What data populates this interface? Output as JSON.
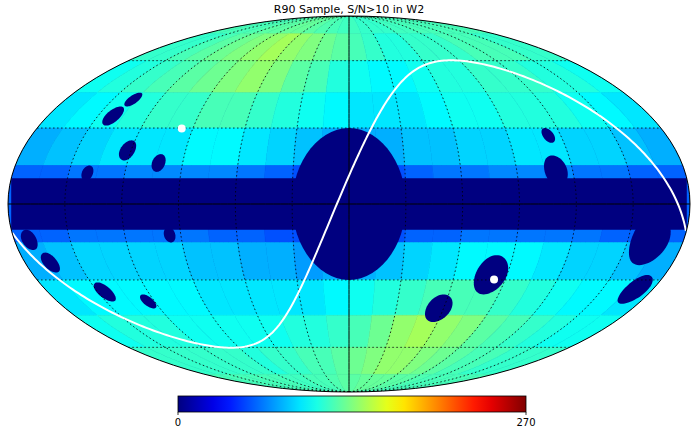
{
  "chart_data": {
    "type": "heatmap",
    "title": "R90 Sample, S/N>10 in W2",
    "lon_edges": [
      180,
      165,
      150,
      135,
      120,
      105,
      90,
      75,
      60,
      45,
      30,
      15,
      0,
      -15,
      -30,
      -45,
      -60,
      -75,
      -90,
      -105,
      -120,
      -135,
      -150,
      -165,
      -180
    ],
    "lat_edges": [
      90,
      75,
      60,
      45,
      30,
      15,
      0,
      -15,
      -30,
      -45,
      -60,
      -75,
      -90
    ],
    "values": [
      [
        120,
        120,
        120,
        122,
        125,
        125,
        128,
        128,
        125,
        122,
        120,
        118,
        118,
        115,
        115,
        115,
        118,
        118,
        120,
        120,
        120,
        120,
        120,
        120
      ],
      [
        115,
        115,
        120,
        125,
        130,
        135,
        140,
        145,
        140,
        135,
        130,
        125,
        120,
        115,
        110,
        110,
        115,
        115,
        115,
        120,
        120,
        120,
        115,
        115
      ],
      [
        105,
        110,
        115,
        120,
        125,
        130,
        135,
        140,
        135,
        125,
        120,
        110,
        105,
        100,
        100,
        105,
        110,
        110,
        115,
        115,
        115,
        110,
        110,
        105
      ],
      [
        95,
        100,
        105,
        110,
        115,
        115,
        120,
        120,
        115,
        110,
        105,
        100,
        95,
        95,
        95,
        100,
        105,
        105,
        110,
        110,
        110,
        105,
        100,
        95
      ],
      [
        80,
        85,
        90,
        95,
        95,
        95,
        100,
        100,
        95,
        90,
        85,
        80,
        80,
        80,
        85,
        85,
        90,
        90,
        95,
        95,
        90,
        90,
        85,
        80
      ],
      [
        60,
        60,
        65,
        65,
        70,
        70,
        70,
        70,
        65,
        60,
        55,
        50,
        50,
        55,
        60,
        65,
        65,
        70,
        70,
        70,
        65,
        65,
        60,
        60
      ],
      [
        60,
        60,
        65,
        65,
        65,
        65,
        65,
        60,
        60,
        55,
        55,
        50,
        50,
        55,
        60,
        60,
        65,
        65,
        65,
        65,
        65,
        60,
        60,
        60
      ],
      [
        80,
        85,
        90,
        90,
        90,
        90,
        85,
        85,
        80,
        80,
        75,
        80,
        80,
        85,
        90,
        95,
        100,
        100,
        100,
        95,
        90,
        90,
        85,
        80
      ],
      [
        95,
        100,
        100,
        100,
        100,
        100,
        95,
        95,
        95,
        95,
        95,
        100,
        105,
        110,
        115,
        120,
        120,
        120,
        115,
        110,
        105,
        100,
        100,
        95
      ],
      [
        105,
        110,
        110,
        110,
        105,
        105,
        105,
        105,
        105,
        110,
        110,
        115,
        120,
        130,
        140,
        145,
        140,
        135,
        125,
        120,
        115,
        110,
        105,
        105
      ],
      [
        115,
        115,
        115,
        115,
        115,
        115,
        110,
        115,
        115,
        120,
        120,
        125,
        130,
        135,
        140,
        140,
        135,
        130,
        125,
        120,
        120,
        115,
        115,
        115
      ],
      [
        120,
        120,
        120,
        120,
        120,
        120,
        118,
        118,
        120,
        120,
        122,
        125,
        125,
        128,
        128,
        128,
        125,
        125,
        122,
        120,
        120,
        120,
        120,
        120
      ]
    ],
    "colorbar": {
      "range": [
        0,
        270
      ],
      "ticks": [
        0,
        270
      ]
    },
    "band_lat": 10,
    "masks": [
      {
        "lon": 0,
        "lat": 0,
        "radius": 30
      },
      {
        "lon": 141,
        "lat": 35,
        "radius": 4
      },
      {
        "lon": 137,
        "lat": 42,
        "radius": 3
      },
      {
        "lon": 122,
        "lat": 21,
        "radius": 4
      },
      {
        "lon": 103,
        "lat": 16,
        "radius": 3.5
      },
      {
        "lon": 140,
        "lat": 12,
        "radius": 3
      },
      {
        "lon": 96,
        "lat": -12,
        "radius": 3
      },
      {
        "lon": 172,
        "lat": -14,
        "radius": 4
      },
      {
        "lon": 166,
        "lat": -23,
        "radius": 4
      },
      {
        "lon": 146,
        "lat": -35,
        "radius": 4
      },
      {
        "lon": 124,
        "lat": -39,
        "radius": 3
      },
      {
        "lon": -111,
        "lat": 13,
        "radius": 6
      },
      {
        "lon": -113,
        "lat": 27,
        "radius": 3
      },
      {
        "lon": -162,
        "lat": -14,
        "radius": 10
      },
      {
        "lon": -170,
        "lat": -34,
        "radius": 6
      },
      {
        "lon": -81,
        "lat": -28,
        "radius": 8
      },
      {
        "lon": -57,
        "lat": -42,
        "radius": 6
      }
    ],
    "ecliptic_poles": [
      {
        "lon": 96.4,
        "lat": 29.8
      },
      {
        "lon": -83.6,
        "lat": -29.8
      }
    ],
    "meridians": [
      -150,
      -120,
      -90,
      -60,
      -30,
      0,
      30,
      60,
      90,
      120,
      150
    ],
    "parallels": [
      -60,
      -30,
      0,
      30,
      60
    ]
  }
}
